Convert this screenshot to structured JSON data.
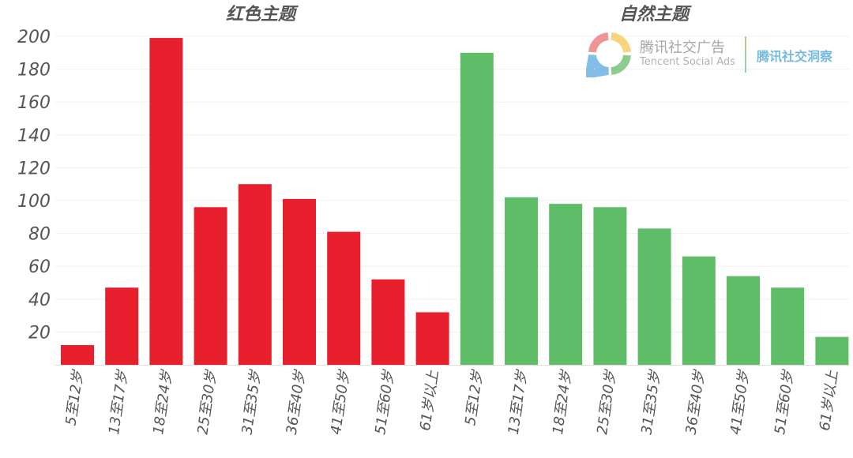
{
  "chart_data": {
    "type": "bar",
    "ylim": [
      0,
      200
    ],
    "yticks": [
      20,
      40,
      60,
      80,
      100,
      120,
      140,
      160,
      180,
      200
    ],
    "grid": true,
    "groups": [
      {
        "title": "红色主题",
        "color": "#e8202e",
        "categories": [
          "5至12岁",
          "13至17岁",
          "18至24岁",
          "25至30岁",
          "31至35岁",
          "36至40岁",
          "41至50岁",
          "51至60岁",
          "61岁以上"
        ],
        "values": [
          12,
          47,
          199,
          96,
          110,
          101,
          81,
          52,
          32
        ]
      },
      {
        "title": "自然主题",
        "color": "#5fbd68",
        "categories": [
          "5至12岁",
          "13至17岁",
          "18至24岁",
          "25至30岁",
          "31至35岁",
          "36至40岁",
          "41至50岁",
          "51至60岁",
          "61岁以上"
        ],
        "values": [
          190,
          102,
          98,
          96,
          83,
          66,
          54,
          47,
          17
        ]
      }
    ]
  },
  "watermark": {
    "brand_cn": "腾讯社交广告",
    "brand_en": "Tencent Social Ads",
    "subtitle": "腾讯社交洞察"
  }
}
